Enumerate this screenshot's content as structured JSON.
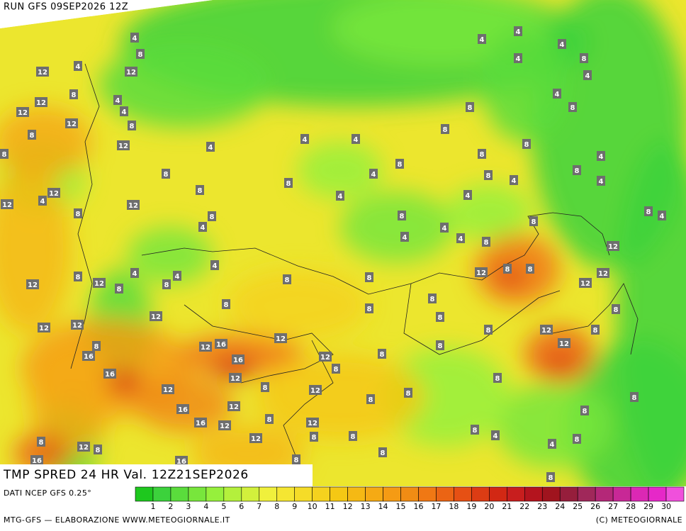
{
  "header": {
    "run": "RUN GFS 09SEP2026 12Z"
  },
  "title": "TMP SPRED 24 HR Val. 12Z21SEP2026",
  "map_labels": [
    4,
    8,
    12,
    4,
    12,
    8,
    12,
    4,
    4,
    12,
    12,
    8,
    8,
    12,
    8,
    4,
    8,
    8,
    8,
    4,
    4,
    4,
    4,
    8,
    8,
    8,
    8,
    8,
    4,
    4,
    8,
    8,
    4,
    4,
    4,
    8,
    4,
    4,
    4,
    4,
    8,
    4,
    4,
    8,
    8,
    4,
    4,
    8,
    4,
    8,
    12,
    12,
    12,
    8,
    12,
    8,
    8,
    8,
    8,
    8,
    8,
    12,
    8,
    12,
    8,
    8,
    8,
    8,
    4,
    8,
    4,
    8,
    12,
    4,
    12,
    8,
    12,
    8,
    4,
    4,
    8,
    8,
    8,
    8,
    4,
    8,
    4,
    8,
    8,
    12,
    12,
    12,
    12,
    12,
    8,
    16,
    16,
    12,
    16,
    16,
    12,
    12,
    8,
    12,
    8,
    12,
    16,
    16,
    12,
    12,
    8,
    12,
    8,
    8,
    8,
    12,
    8,
    8,
    8,
    12,
    8,
    12,
    8,
    16,
    16,
    8
  ],
  "legend": {
    "source": "DATI NCEP GFS 0.25°",
    "ticks": [
      1,
      2,
      3,
      4,
      5,
      6,
      7,
      8,
      9,
      10,
      11,
      12,
      13,
      14,
      15,
      16,
      17,
      18,
      19,
      20,
      21,
      22,
      23,
      24,
      25,
      26,
      27,
      28,
      29,
      30
    ],
    "colors": [
      "#1ec81e",
      "#3cd23c",
      "#5adc3c",
      "#78e63c",
      "#96f03c",
      "#b4f03c",
      "#d2f03c",
      "#f0f03c",
      "#f5e632",
      "#f5dc28",
      "#f5d21e",
      "#f5c814",
      "#f5b914",
      "#f5aa14",
      "#f59b14",
      "#f08c14",
      "#f07814",
      "#eb6414",
      "#e65014",
      "#dc3c14",
      "#d22814",
      "#c81e1e",
      "#b4141e",
      "#a0141e",
      "#961e3c",
      "#a0285a",
      "#b42878",
      "#c82896",
      "#dc28b4",
      "#e628c8",
      "#f050dc"
    ]
  },
  "footer": {
    "left": "MTG-GFS — ELABORAZIONE WWW.METEOGIORNALE.IT",
    "right": "(C) METEOGIORNALE"
  }
}
